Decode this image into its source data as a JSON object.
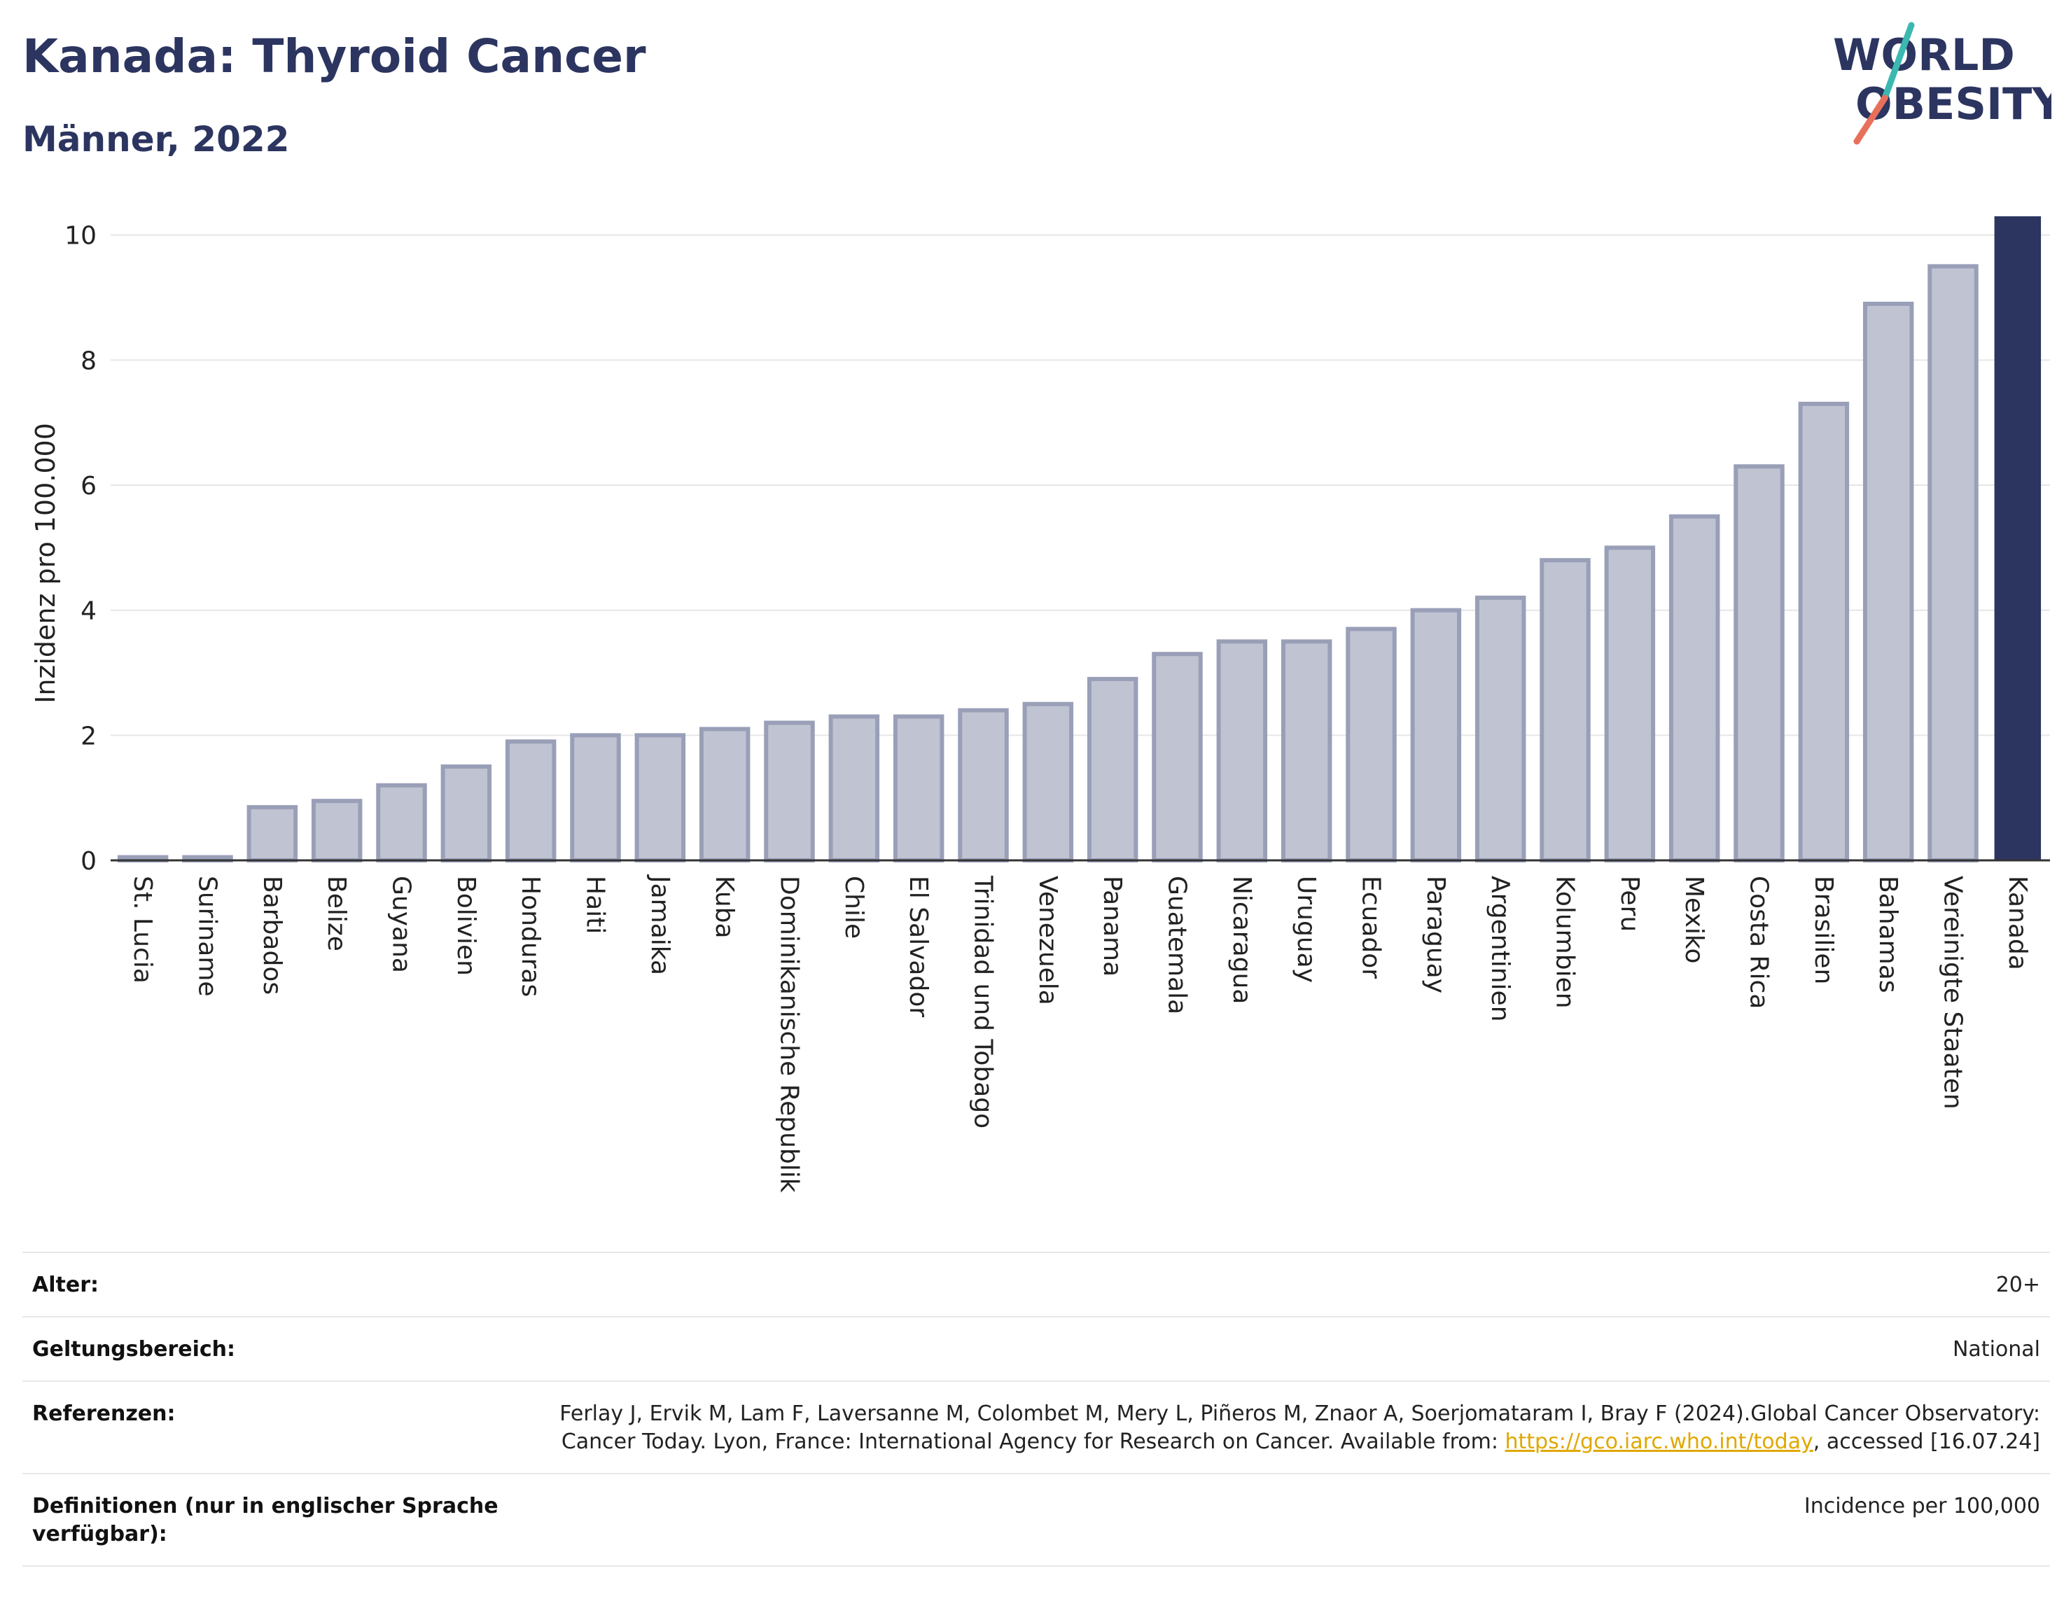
{
  "header": {
    "title": "Kanada: Thyroid Cancer",
    "subtitle": "Männer, 2022"
  },
  "logo": {
    "line1": "WORLD",
    "line2": "OBESITY",
    "colors": {
      "text": "#2c3560",
      "slash_red": "#e8705a",
      "slash_teal": "#3bb8b0"
    }
  },
  "colors": {
    "bar_fill": "#c0c3d1",
    "bar_stroke": "#9a9fb8",
    "highlight": "#2c3560",
    "grid": "#e6e6e6",
    "axis": "#333333"
  },
  "chart_data": {
    "type": "bar",
    "title": "",
    "xlabel": "",
    "ylabel": "Inzidenz pro 100.000",
    "ylim": [
      0,
      10.4
    ],
    "yticks": [
      0,
      2,
      4,
      6,
      8,
      10
    ],
    "grid": true,
    "highlight": "Kanada",
    "categories": [
      "St. Lucia",
      "Suriname",
      "Barbados",
      "Belize",
      "Guyana",
      "Bolivien",
      "Honduras",
      "Haiti",
      "Jamaika",
      "Kuba",
      "Dominikanische Republik",
      "Chile",
      "El Salvador",
      "Trinidad und Tobago",
      "Venezuela",
      "Panama",
      "Guatemala",
      "Nicaragua",
      "Uruguay",
      "Ecuador",
      "Paraguay",
      "Argentinien",
      "Kolumbien",
      "Peru",
      "Mexiko",
      "Costa Rica",
      "Brasilien",
      "Bahamas",
      "Vereinigte Staaten",
      "Kanada"
    ],
    "values": [
      0.05,
      0.05,
      0.85,
      0.95,
      1.2,
      1.5,
      1.9,
      2.0,
      2.0,
      2.1,
      2.2,
      2.3,
      2.3,
      2.4,
      2.5,
      2.9,
      3.3,
      3.5,
      3.5,
      3.7,
      4.0,
      4.2,
      4.8,
      5.0,
      5.5,
      6.3,
      7.3,
      8.9,
      9.5,
      10.3
    ]
  },
  "meta": [
    {
      "label": "Alter:",
      "value": "20+"
    },
    {
      "label": "Geltungsbereich:",
      "value": "National"
    },
    {
      "label": "Referenzen:",
      "value_before": "Ferlay J, Ervik M, Lam F, Laversanne M, Colombet M, Mery L, Piñeros M, Znaor A, Soerjomataram I, Bray F (2024).Global Cancer Observatory: Cancer Today. Lyon, France: International Agency for Research on Cancer. Available from: ",
      "link": "https://gco.iarc.who.int/today",
      "value_after": ", accessed [16.07.24]"
    },
    {
      "label": "Definitionen (nur in englischer Sprache verfügbar):",
      "value": "Incidence per 100,000"
    }
  ]
}
